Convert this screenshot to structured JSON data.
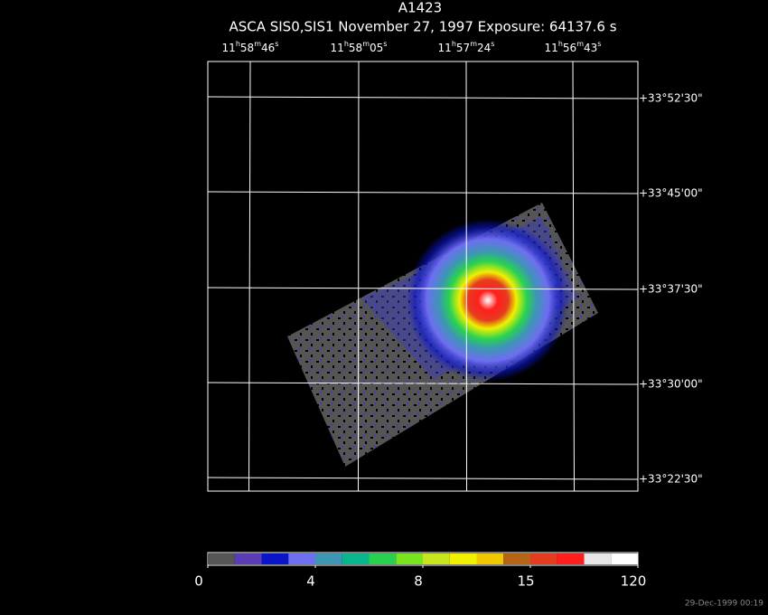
{
  "title": "A1423",
  "subtitle": "ASCA SIS0,SIS1 November 27, 1997 Exposure: 64137.6 s",
  "ra_labels": [
    [
      "11",
      "h",
      "58",
      "m",
      "46",
      "s"
    ],
    [
      "11",
      "h",
      "58",
      "m",
      "05",
      "s"
    ],
    [
      "11",
      "h",
      "57",
      "m",
      "24",
      "s"
    ],
    [
      "11",
      "h",
      "56",
      "m",
      "43",
      "s"
    ]
  ],
  "dec_labels": [
    "+33°52'30\"",
    "+33°45'00\"",
    "+33°37'30\"",
    "+33°30'00\"",
    "+33°22'30\""
  ],
  "colorbar": {
    "colors": [
      "#555555",
      "#5a3cb4",
      "#0a14c8",
      "#6e6ef0",
      "#3c96b4",
      "#0ab48c",
      "#28d250",
      "#78e61e",
      "#c8e61e",
      "#f0f000",
      "#f0c800",
      "#b46414",
      "#e63c1e",
      "#ff1e1e",
      "#e6e6e6",
      "#ffffff"
    ],
    "ticks": [
      0,
      4,
      8,
      15,
      120
    ]
  },
  "footer": "29-Dec-1999 00:19"
}
